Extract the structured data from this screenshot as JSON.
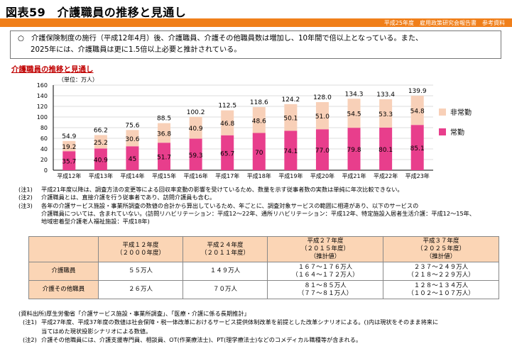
{
  "header": {
    "title": "図表59　介護職員の推移と見通し",
    "source_line": "平成25年度　雇用政策研究会報告書　参考資料"
  },
  "summary": {
    "line1": "○　介護保険制度の施行（平成12年4月）後、介護職員、介護その他職員数は増加し、10年間で倍以上となっている。また、",
    "line2": "2025年には、介護職員は更に1.5倍以上必要と推計されている。"
  },
  "subtitle": "介護職員の推移と見通し",
  "colors": {
    "regular": "#e83e8c",
    "nonregular": "#f8d0b8",
    "accent": "#f07f1a",
    "table_header": "#fbd5b5"
  },
  "chart_data": {
    "type": "bar",
    "stacked": true,
    "unit_label": "（単位：万人）",
    "categories": [
      "平成12年",
      "平成13年",
      "平成14年",
      "平成15年",
      "平成16年",
      "平成17年",
      "平成18年",
      "平成19年",
      "平成20年",
      "平成21年",
      "平成22年",
      "平成23年"
    ],
    "series": [
      {
        "name": "常勤",
        "values": [
          "35.7",
          "40.9",
          "45",
          "51.7",
          "59.3",
          "65.7",
          "70",
          "74.1",
          "77.0",
          "79.8",
          "80.1",
          "85.1"
        ]
      },
      {
        "name": "非常勤",
        "values": [
          "19.2",
          "25.2",
          "30.6",
          "36.8",
          "40.9",
          "46.8",
          "48.6",
          "50.1",
          "51.0",
          "54.5",
          "53.3",
          "54.8"
        ]
      }
    ],
    "totals": [
      "54.9",
      "66.2",
      "75.6",
      "88.5",
      "100.2",
      "112.5",
      "118.6",
      "124.2",
      "128.0",
      "134.3",
      "133.4",
      "139.9"
    ],
    "yticks": [
      "0",
      "20",
      "40",
      "60",
      "80",
      "100",
      "120",
      "140",
      "160"
    ],
    "ylim": [
      0,
      160
    ],
    "legend": [
      "非常勤",
      "常勤"
    ]
  },
  "notes": [
    {
      "label": "(注1)",
      "text": "平成21年度以降は、調査方法の変更等による回収率変動の影響を受けているため、数量を示す従事者数の実数は単純に年次比較できない。"
    },
    {
      "label": "(注2)",
      "text": "介護職員とは、直接介護を行う従事者であり、訪問介護員も含む。"
    },
    {
      "label": "(注3)",
      "text": "各年の介護サービス施設・事業所調査の数値の合計から算出しているため、年ごとに、調査対象サービスの範囲に相違があり、以下のサービスの"
    }
  ],
  "notes_cont": [
    "介護職員については、含まれていない。(訪問リハビリテーション：平成12～22年、通所リハビリテーション：平成12年、特定施設入居者生活介護：平成12～15年、",
    "地域密着型介護老人福祉施設：平成18年)"
  ],
  "table": {
    "headers": [
      {
        "l1": "平成１２年度",
        "l2": "（２０００年度）",
        "l3": ""
      },
      {
        "l1": "平成２４年度",
        "l2": "（２０１１年度）",
        "l3": ""
      },
      {
        "l1": "平成２７年度",
        "l2": "（２０１５年度）",
        "l3": "（推計値）"
      },
      {
        "l1": "平成３７年度",
        "l2": "（２０２５年度）",
        "l3": "（推計値）"
      }
    ],
    "rows": [
      {
        "label": "介護職員",
        "cells": [
          {
            "a": "５５万人",
            "b": ""
          },
          {
            "a": "１４９万人",
            "b": ""
          },
          {
            "a": "１６７～１７６万人",
            "b": "（１６４～１７２万人）"
          },
          {
            "a": "２３７～２４９万人",
            "b": "（２１８～２２９万人）"
          }
        ]
      },
      {
        "label": "介護その他職員",
        "cells": [
          {
            "a": "２６万人",
            "b": ""
          },
          {
            "a": "７０万人",
            "b": ""
          },
          {
            "a": "８１～８５万人",
            "b": "（７７～８１万人）"
          },
          {
            "a": "１２８～１３４万人",
            "b": "（１０２～１０７万人）"
          }
        ]
      }
    ]
  },
  "source": {
    "title": "(資料出所)厚生労働省「介護サービス施設・事業所調査」、「医療・介護に係る長期推計」",
    "items": [
      {
        "label": "(注1)",
        "text": "平成27年度、平成37年度の数値は社会保障・税一体改革におけるサービス提供体制改革を前提とした改革シナリオによる。()内は現状をそのまま将来に"
      },
      {
        "label": "",
        "text": "当てはめた現状投影シナリオによる数値。"
      },
      {
        "label": "(注2)",
        "text": "介護その他職員には、介護支援専門員、相談員、OT(作業療法士)、PT(理学療法士)などのコメディカル職種等が含まれる。"
      }
    ]
  }
}
